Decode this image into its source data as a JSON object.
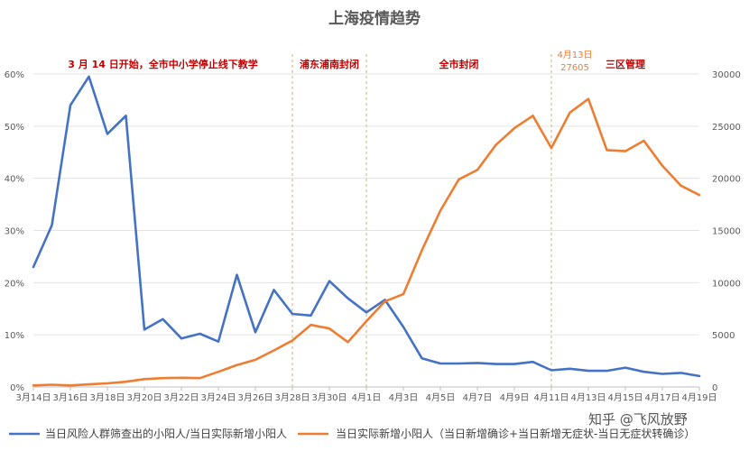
{
  "chart_data": {
    "type": "line",
    "title": "上海疫情趋势",
    "x_ticks": [
      "3月14日",
      "3月16日",
      "3月18日",
      "3月20日",
      "3月22日",
      "3月24日",
      "3月26日",
      "3月28日",
      "3月30日",
      "4月1日",
      "4月3日",
      "4月5日",
      "4月7日",
      "4月9日",
      "4月11日",
      "4月13日",
      "4月15日",
      "4月17日",
      "4月19日"
    ],
    "x": [
      "3月14日",
      "3月15日",
      "3月16日",
      "3月17日",
      "3月18日",
      "3月19日",
      "3月20日",
      "3月21日",
      "3月22日",
      "3月23日",
      "3月24日",
      "3月25日",
      "3月26日",
      "3月27日",
      "3月28日",
      "3月29日",
      "3月30日",
      "3月31日",
      "4月1日",
      "4月2日",
      "4月3日",
      "4月4日",
      "4月5日",
      "4月6日",
      "4月7日",
      "4月8日",
      "4月9日",
      "4月10日",
      "4月11日",
      "4月12日",
      "4月13日",
      "4月14日",
      "4月15日",
      "4月16日",
      "4月17日",
      "4月18日",
      "4月19日"
    ],
    "y_left_ticks": [
      "0%",
      "10%",
      "20%",
      "30%",
      "40%",
      "50%",
      "60%"
    ],
    "y_right_ticks": [
      "0",
      "5000",
      "10000",
      "15000",
      "20000",
      "25000",
      "30000"
    ],
    "ylim_left": [
      0,
      60
    ],
    "ylim_right": [
      0,
      30000
    ],
    "series": [
      {
        "name": "当日风险人群筛查出的小阳人/当日实际新增小阳人",
        "axis": "left",
        "color": "#4472c4",
        "values": [
          23,
          31,
          54,
          59.5,
          48.5,
          52,
          11,
          13,
          9.3,
          10.2,
          8.7,
          21.5,
          10.5,
          18.6,
          14,
          13.7,
          20.3,
          17,
          14.3,
          16.7,
          11.5,
          5.5,
          4.5,
          4.5,
          4.6,
          4.4,
          4.4,
          4.8,
          3.2,
          3.5,
          3.1,
          3.1,
          3.7,
          2.9,
          2.5,
          2.7,
          2.1
        ]
      },
      {
        "name": "当日实际新增小阳人（当日新增确诊+当日新增无症状-当日无症状转确诊）",
        "axis": "right",
        "color": "#ed7d31",
        "values": [
          150,
          220,
          150,
          250,
          350,
          500,
          750,
          850,
          880,
          850,
          1450,
          2100,
          2600,
          3500,
          4450,
          5950,
          5600,
          4300,
          6300,
          8200,
          8900,
          13100,
          16900,
          19900,
          20800,
          23200,
          24800,
          26000,
          22900,
          26300,
          27605,
          22700,
          22600,
          23600,
          21200,
          19300,
          18400
        ]
      }
    ],
    "phases": [
      {
        "label": "3 月 14 日开始，全市中小学停止线下教学",
        "from": "3月14日",
        "to": "3月28日"
      },
      {
        "label": "浦东浦南封闭",
        "from": "3月28日",
        "to": "4月1日"
      },
      {
        "label": "全市封闭",
        "from": "4月1日",
        "to": "4月11日"
      },
      {
        "label": "三区管理",
        "from": "4月11日",
        "to": "4月19日"
      }
    ],
    "annotation": {
      "date_label": "4月13日",
      "value_label": "27605",
      "at": "4月13日"
    },
    "grid": true,
    "legend": "bottom"
  },
  "watermark": "知乎 @飞风放野"
}
